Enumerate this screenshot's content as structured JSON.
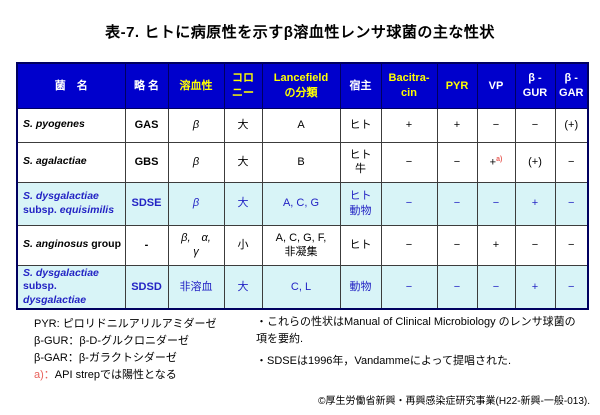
{
  "title": "表-7. ヒトに病原性を示すβ溶血性レンサ球菌の主な性状",
  "colors": {
    "header_bg": "#0000CC",
    "header_yellow": "#FFFF00",
    "highlight_bg": "#D8F4F7",
    "highlight_text": "#2323C4",
    "note_red": "#E8625C",
    "border_dark": "#000060"
  },
  "table": {
    "headers": [
      {
        "lines": [
          "菌　名"
        ],
        "yellow": false
      },
      {
        "lines": [
          "略 名"
        ],
        "yellow": false
      },
      {
        "lines": [
          "溶血性"
        ],
        "yellow": true
      },
      {
        "lines": [
          "コロ",
          "ニー"
        ],
        "yellow": true
      },
      {
        "lines": [
          "Lancefield",
          "の分類"
        ],
        "yellow": true
      },
      {
        "lines": [
          "宿主"
        ],
        "yellow": false
      },
      {
        "lines": [
          "Bacitra-",
          "cin"
        ],
        "yellow": true
      },
      {
        "lines": [
          "PYR"
        ],
        "yellow": true
      },
      {
        "lines": [
          "VP"
        ],
        "yellow": false
      },
      {
        "lines": [
          "β -",
          "GUR"
        ],
        "yellow": false
      },
      {
        "lines": [
          "β -",
          "GAR"
        ],
        "yellow": false
      }
    ],
    "rows": [
      {
        "name": [
          [
            {
              "t": "S. pyogenes",
              "i": 1
            }
          ]
        ],
        "abbr": "GAS",
        "hemolysis": [
          "β"
        ],
        "hemolysis_italic": true,
        "colony": "大",
        "lancefield": [
          "A"
        ],
        "host": [
          "ヒト"
        ],
        "bacitracin": "+",
        "pyr": "+",
        "vp": "−",
        "vp_sup": "",
        "bgur": "−",
        "bgar": "(+)",
        "highlight": false
      },
      {
        "name": [
          [
            {
              "t": "S. agalactiae",
              "i": 1
            }
          ]
        ],
        "abbr": "GBS",
        "hemolysis": [
          "β"
        ],
        "hemolysis_italic": true,
        "colony": "大",
        "lancefield": [
          "B"
        ],
        "host": [
          "ヒト",
          "牛"
        ],
        "bacitracin": "−",
        "pyr": "−",
        "vp": "+",
        "vp_sup": "a)",
        "bgur": "(+)",
        "bgar": "−",
        "highlight": false
      },
      {
        "name": [
          [
            {
              "t": "S. dysgalactiae",
              "i": 1
            }
          ],
          [
            {
              "t": "subsp. ",
              "i": 0
            },
            {
              "t": "equisimilis",
              "i": 1
            }
          ]
        ],
        "abbr": "SDSE",
        "hemolysis": [
          "β"
        ],
        "hemolysis_italic": true,
        "colony": "大",
        "lancefield": [
          "A, C, G"
        ],
        "host": [
          "ヒト",
          "動物"
        ],
        "bacitracin": "−",
        "pyr": "−",
        "vp": "−",
        "vp_sup": "",
        "bgur": "+",
        "bgar": "−",
        "highlight": true
      },
      {
        "name": [
          [
            {
              "t": "S. anginosus",
              "i": 1
            },
            {
              "t": " group",
              "i": 0
            }
          ]
        ],
        "abbr": "-",
        "hemolysis": [
          "β,　α,",
          "γ"
        ],
        "hemolysis_italic": true,
        "colony": "小",
        "lancefield": [
          "A, C, G, F,",
          "非凝集"
        ],
        "host": [
          "ヒト"
        ],
        "bacitracin": "−",
        "pyr": "−",
        "vp": "+",
        "vp_sup": "",
        "bgur": "−",
        "bgar": "−",
        "highlight": false
      },
      {
        "name": [
          [
            {
              "t": "S. dysgalactiae",
              "i": 1
            }
          ],
          [
            {
              "t": "subsp. ",
              "i": 0
            },
            {
              "t": "dysgalactiae",
              "i": 1
            }
          ]
        ],
        "abbr": "SDSD",
        "hemolysis": [
          "非溶血"
        ],
        "hemolysis_italic": false,
        "colony": "大",
        "lancefield": [
          "C, L"
        ],
        "host": [
          "動物"
        ],
        "bacitracin": "−",
        "pyr": "−",
        "vp": "−",
        "vp_sup": "",
        "bgur": "+",
        "bgar": "−",
        "highlight": true
      }
    ]
  },
  "notes": {
    "left_1": "PYR: ピロリドニルアリルアミダーゼ",
    "left_2": "β-GUR：β-D-グルクロニダーゼ",
    "left_3": "β-GAR：β-ガラクトシダーゼ",
    "left_4_red": "a)：",
    "left_4": "API strepでは陽性となる",
    "right_1": "・これらの性状はManual of Clinical Microbiology のレンサ球菌の項を要約.",
    "right_2": "・SDSEは1996年，Vandammeによって提唱された."
  },
  "copyright": "©厚生労働省新興・再興感染症研究事業(H22-新興-一般-013)."
}
